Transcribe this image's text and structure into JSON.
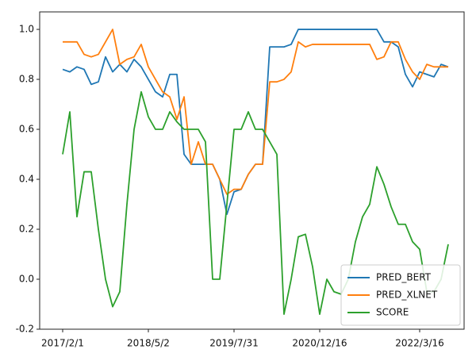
{
  "chart_data": {
    "type": "line",
    "categories": [
      "2017/2/1",
      null,
      null,
      null,
      null,
      null,
      null,
      null,
      null,
      null,
      null,
      null,
      "2018/5/2",
      null,
      null,
      null,
      null,
      null,
      null,
      null,
      null,
      null,
      null,
      null,
      "2019/7/31",
      null,
      null,
      null,
      null,
      null,
      null,
      null,
      null,
      null,
      null,
      null,
      "2020/12/16",
      null,
      null,
      null,
      null,
      null,
      null,
      null,
      null,
      null,
      null,
      null,
      null,
      null,
      "2022/3/16",
      null,
      null,
      null,
      null
    ],
    "series": [
      {
        "name": "PRED_BERT",
        "color": "#1f77b4",
        "values": [
          0.84,
          0.83,
          0.85,
          0.84,
          0.78,
          0.79,
          0.89,
          0.83,
          0.86,
          0.83,
          0.88,
          0.85,
          0.8,
          0.75,
          0.73,
          0.82,
          0.82,
          0.5,
          0.46,
          0.46,
          0.46,
          0.46,
          0.4,
          0.26,
          0.35,
          0.36,
          0.42,
          0.46,
          0.46,
          0.93,
          0.93,
          0.93,
          0.94,
          1.0,
          1.0,
          1.0,
          1.0,
          1.0,
          1.0,
          1.0,
          1.0,
          1.0,
          1.0,
          1.0,
          1.0,
          0.95,
          0.95,
          0.93,
          0.82,
          0.77,
          0.83,
          0.82,
          0.81,
          0.86,
          0.85
        ]
      },
      {
        "name": "PRED_XLNET",
        "color": "#ff7f0e",
        "values": [
          0.95,
          0.95,
          0.95,
          0.9,
          0.89,
          0.9,
          0.95,
          1.0,
          0.86,
          0.88,
          0.89,
          0.94,
          0.85,
          0.8,
          0.75,
          0.73,
          0.64,
          0.73,
          0.46,
          0.55,
          0.46,
          0.46,
          0.4,
          0.34,
          0.36,
          0.36,
          0.42,
          0.46,
          0.46,
          0.79,
          0.79,
          0.8,
          0.83,
          0.95,
          0.93,
          0.94,
          0.94,
          0.94,
          0.94,
          0.94,
          0.94,
          0.94,
          0.94,
          0.94,
          0.88,
          0.89,
          0.95,
          0.95,
          0.88,
          0.83,
          0.8,
          0.86,
          0.85,
          0.85,
          0.85
        ]
      },
      {
        "name": "SCORE",
        "color": "#2ca02c",
        "values": [
          0.5,
          0.67,
          0.25,
          0.43,
          0.43,
          0.2,
          0.0,
          -0.11,
          -0.05,
          0.3,
          0.6,
          0.75,
          0.65,
          0.6,
          0.6,
          0.67,
          0.63,
          0.6,
          0.6,
          0.6,
          0.55,
          0.0,
          0.0,
          0.3,
          0.6,
          0.6,
          0.67,
          0.6,
          0.6,
          0.55,
          0.5,
          -0.14,
          0.0,
          0.17,
          0.18,
          0.05,
          -0.14,
          0.0,
          -0.05,
          -0.06,
          0.0,
          0.15,
          0.25,
          0.3,
          0.45,
          0.38,
          0.29,
          0.22,
          0.22,
          0.15,
          0.12,
          -0.05,
          -0.05,
          0.0,
          0.14
        ]
      }
    ],
    "ylim": [
      -0.2,
      1.07
    ],
    "yticks": [
      -0.2,
      {
        "value": 0,
        "label": "0.0"
      },
      0.2,
      0.4,
      0.6,
      0.8,
      {
        "value": 1,
        "label": "1.0"
      }
    ],
    "legend": "lower right"
  }
}
